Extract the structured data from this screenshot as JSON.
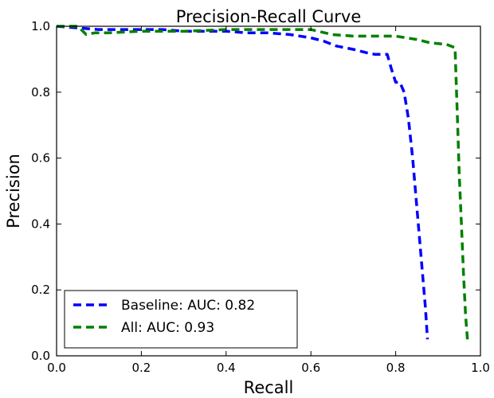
{
  "chart_data": {
    "type": "line",
    "title": "Precision-Recall Curve",
    "xlabel": "Recall",
    "ylabel": "Precision",
    "xlim": [
      0.0,
      1.0
    ],
    "ylim": [
      0.0,
      1.0
    ],
    "xticks": [
      "0.0",
      "0.2",
      "0.4",
      "0.6",
      "0.8",
      "1.0"
    ],
    "yticks": [
      "0.0",
      "0.2",
      "0.4",
      "0.6",
      "0.8",
      "1.0"
    ],
    "grid": false,
    "legend_position": "lower-left",
    "series": [
      {
        "name": "Baseline: AUC: 0.82",
        "color": "#0000ff",
        "style": "dashed",
        "x": [
          0.0,
          0.05,
          0.1,
          0.15,
          0.2,
          0.25,
          0.3,
          0.35,
          0.4,
          0.45,
          0.5,
          0.55,
          0.6,
          0.63,
          0.66,
          0.7,
          0.73,
          0.75,
          0.78,
          0.79,
          0.8,
          0.81,
          0.82,
          0.83,
          0.84,
          0.85,
          0.86,
          0.87,
          0.875
        ],
        "y": [
          1.0,
          0.995,
          0.99,
          0.99,
          0.99,
          0.99,
          0.985,
          0.985,
          0.985,
          0.98,
          0.98,
          0.975,
          0.965,
          0.955,
          0.94,
          0.93,
          0.92,
          0.915,
          0.915,
          0.87,
          0.83,
          0.83,
          0.8,
          0.72,
          0.6,
          0.45,
          0.3,
          0.15,
          0.05
        ]
      },
      {
        "name": "All: AUC: 0.93",
        "color": "#008000",
        "style": "dashed",
        "x": [
          0.0,
          0.05,
          0.07,
          0.09,
          0.12,
          0.2,
          0.3,
          0.4,
          0.5,
          0.6,
          0.65,
          0.7,
          0.75,
          0.8,
          0.85,
          0.88,
          0.92,
          0.94,
          0.945,
          0.95,
          0.955,
          0.96,
          0.965,
          0.97
        ],
        "y": [
          1.0,
          1.0,
          0.975,
          0.98,
          0.98,
          0.985,
          0.985,
          0.99,
          0.99,
          0.99,
          0.975,
          0.97,
          0.97,
          0.97,
          0.96,
          0.95,
          0.945,
          0.935,
          0.75,
          0.55,
          0.4,
          0.25,
          0.12,
          0.04
        ]
      }
    ]
  }
}
